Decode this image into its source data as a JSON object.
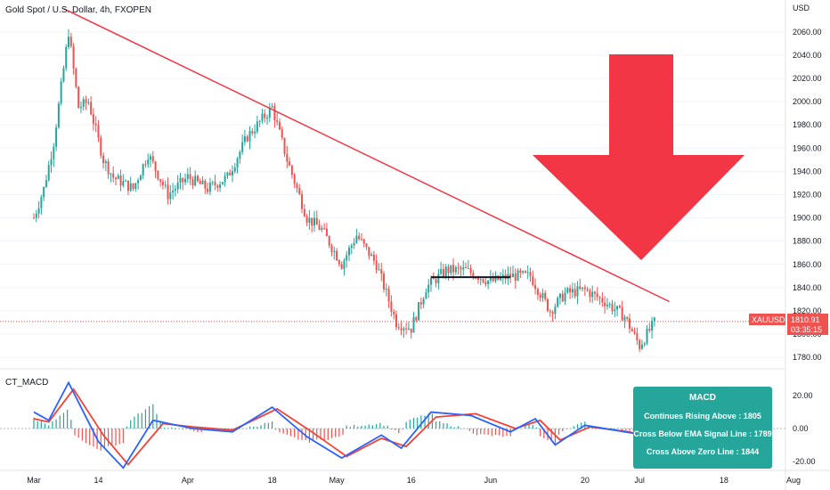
{
  "title": "Gold Spot / U.S. Dollar, 4h, FXOPEN",
  "currency": "USD",
  "symbol_tag": "XAUUSD",
  "last_price": "1810.91",
  "countdown": "03:35:15",
  "indicator_name": "CT_MACD",
  "colors": {
    "up": "#26a69a",
    "down": "#ef5350",
    "trendline": "#f23645",
    "arrow": "#f23645",
    "macd_line": "#2962ff",
    "signal_line": "#f44336",
    "support_line": "#131722",
    "price_line": "#ef5350",
    "panel_bg": "#26a69a"
  },
  "info_panel": {
    "title": "MACD",
    "lines": [
      "Continues Rising Above : 1805",
      "Cross Below EMA Signal Line : 1789",
      "Cross Above Zero Line : 1844"
    ]
  },
  "x_tick_labels": [
    "Mar",
    "14",
    "Apr",
    "18",
    "May",
    "16",
    "Jun",
    "20",
    "Jul",
    "18",
    "Aug"
  ],
  "y_tick_labels": [
    "2060.00",
    "2040.00",
    "2020.00",
    "2000.00",
    "1980.00",
    "1960.00",
    "1940.00",
    "1920.00",
    "1900.00",
    "1880.00",
    "1860.00",
    "1840.00",
    "1820.00",
    "1800.00",
    "1780.00"
  ],
  "macd_tick_labels": [
    "20.00",
    "0.00",
    "-20.00"
  ],
  "chart_data": {
    "type": "candlestick",
    "title": "Gold Spot / U.S. Dollar, 4h, FXOPEN",
    "x_range": [
      "Mar",
      "Aug"
    ],
    "ylim": [
      1770,
      2085
    ],
    "price_path": [
      {
        "t": "Mar 1",
        "v": 1900
      },
      {
        "t": "Mar 3",
        "v": 1925
      },
      {
        "t": "Mar 5",
        "v": 1965
      },
      {
        "t": "Mar 8",
        "v": 2060
      },
      {
        "t": "Mar 10",
        "v": 1995
      },
      {
        "t": "Mar 12",
        "v": 2000
      },
      {
        "t": "Mar 15",
        "v": 1950
      },
      {
        "t": "Mar 17",
        "v": 1935
      },
      {
        "t": "Mar 21",
        "v": 1925
      },
      {
        "t": "Mar 24",
        "v": 1955
      },
      {
        "t": "Mar 28",
        "v": 1920
      },
      {
        "t": "Apr 1",
        "v": 1935
      },
      {
        "t": "Apr 5",
        "v": 1925
      },
      {
        "t": "Apr 9",
        "v": 1935
      },
      {
        "t": "Apr 13",
        "v": 1970
      },
      {
        "t": "Apr 18",
        "v": 1995
      },
      {
        "t": "Apr 21",
        "v": 1950
      },
      {
        "t": "Apr 25",
        "v": 1900
      },
      {
        "t": "Apr 28",
        "v": 1890
      },
      {
        "t": "May 2",
        "v": 1860
      },
      {
        "t": "May 5",
        "v": 1885
      },
      {
        "t": "May 9",
        "v": 1860
      },
      {
        "t": "May 13",
        "v": 1810
      },
      {
        "t": "May 16",
        "v": 1805
      },
      {
        "t": "May 19",
        "v": 1840
      },
      {
        "t": "May 23",
        "v": 1855
      },
      {
        "t": "May 27",
        "v": 1855
      },
      {
        "t": "Jun 1",
        "v": 1845
      },
      {
        "t": "Jun 5",
        "v": 1850
      },
      {
        "t": "Jun 9",
        "v": 1850
      },
      {
        "t": "Jun 13",
        "v": 1820
      },
      {
        "t": "Jun 16",
        "v": 1835
      },
      {
        "t": "Jun 20",
        "v": 1838
      },
      {
        "t": "Jun 24",
        "v": 1828
      },
      {
        "t": "Jun 28",
        "v": 1815
      },
      {
        "t": "Jul 1",
        "v": 1790
      },
      {
        "t": "Jul 4",
        "v": 1810
      }
    ],
    "support_level": 1849,
    "trendline": {
      "start": {
        "t": "Mar 7",
        "v": 2080
      },
      "end": {
        "t": "Jul 7",
        "v": 1828
      }
    },
    "last_price": 1810.91,
    "macd": {
      "ylim": [
        -20,
        20
      ],
      "macd": [
        {
          "t": "Mar 1",
          "v": 10
        },
        {
          "t": "Mar 4",
          "v": 5
        },
        {
          "t": "Mar 8",
          "v": 28
        },
        {
          "t": "Mar 14",
          "v": -8
        },
        {
          "t": "Mar 19",
          "v": -24
        },
        {
          "t": "Mar 25",
          "v": 5
        },
        {
          "t": "Apr 2",
          "v": 0
        },
        {
          "t": "Apr 10",
          "v": -2
        },
        {
          "t": "Apr 18",
          "v": 13
        },
        {
          "t": "Apr 25",
          "v": -5
        },
        {
          "t": "May 2",
          "v": -18
        },
        {
          "t": "May 10",
          "v": -4
        },
        {
          "t": "May 14",
          "v": -12
        },
        {
          "t": "May 20",
          "v": 10
        },
        {
          "t": "May 28",
          "v": 8
        },
        {
          "t": "Jun 5",
          "v": -2
        },
        {
          "t": "Jun 10",
          "v": 6
        },
        {
          "t": "Jun 14",
          "v": -10
        },
        {
          "t": "Jun 20",
          "v": 2
        },
        {
          "t": "Jun 28",
          "v": -2
        },
        {
          "t": "Jul 2",
          "v": -4
        }
      ],
      "signal": [
        {
          "t": "Mar 1",
          "v": 6
        },
        {
          "t": "Mar 4",
          "v": 4
        },
        {
          "t": "Mar 9",
          "v": 24
        },
        {
          "t": "Mar 15",
          "v": -4
        },
        {
          "t": "Mar 20",
          "v": -22
        },
        {
          "t": "Mar 27",
          "v": 3
        },
        {
          "t": "Apr 2",
          "v": 1
        },
        {
          "t": "Apr 10",
          "v": -1
        },
        {
          "t": "Apr 19",
          "v": 12
        },
        {
          "t": "Apr 26",
          "v": -2
        },
        {
          "t": "May 3",
          "v": -17
        },
        {
          "t": "May 10",
          "v": -6
        },
        {
          "t": "May 15",
          "v": -11
        },
        {
          "t": "May 21",
          "v": 7
        },
        {
          "t": "May 29",
          "v": 9
        },
        {
          "t": "Jun 6",
          "v": 0
        },
        {
          "t": "Jun 11",
          "v": 5
        },
        {
          "t": "Jun 15",
          "v": -7
        },
        {
          "t": "Jun 21",
          "v": 1
        },
        {
          "t": "Jun 29",
          "v": -2
        },
        {
          "t": "Jul 2",
          "v": -5
        }
      ]
    }
  }
}
